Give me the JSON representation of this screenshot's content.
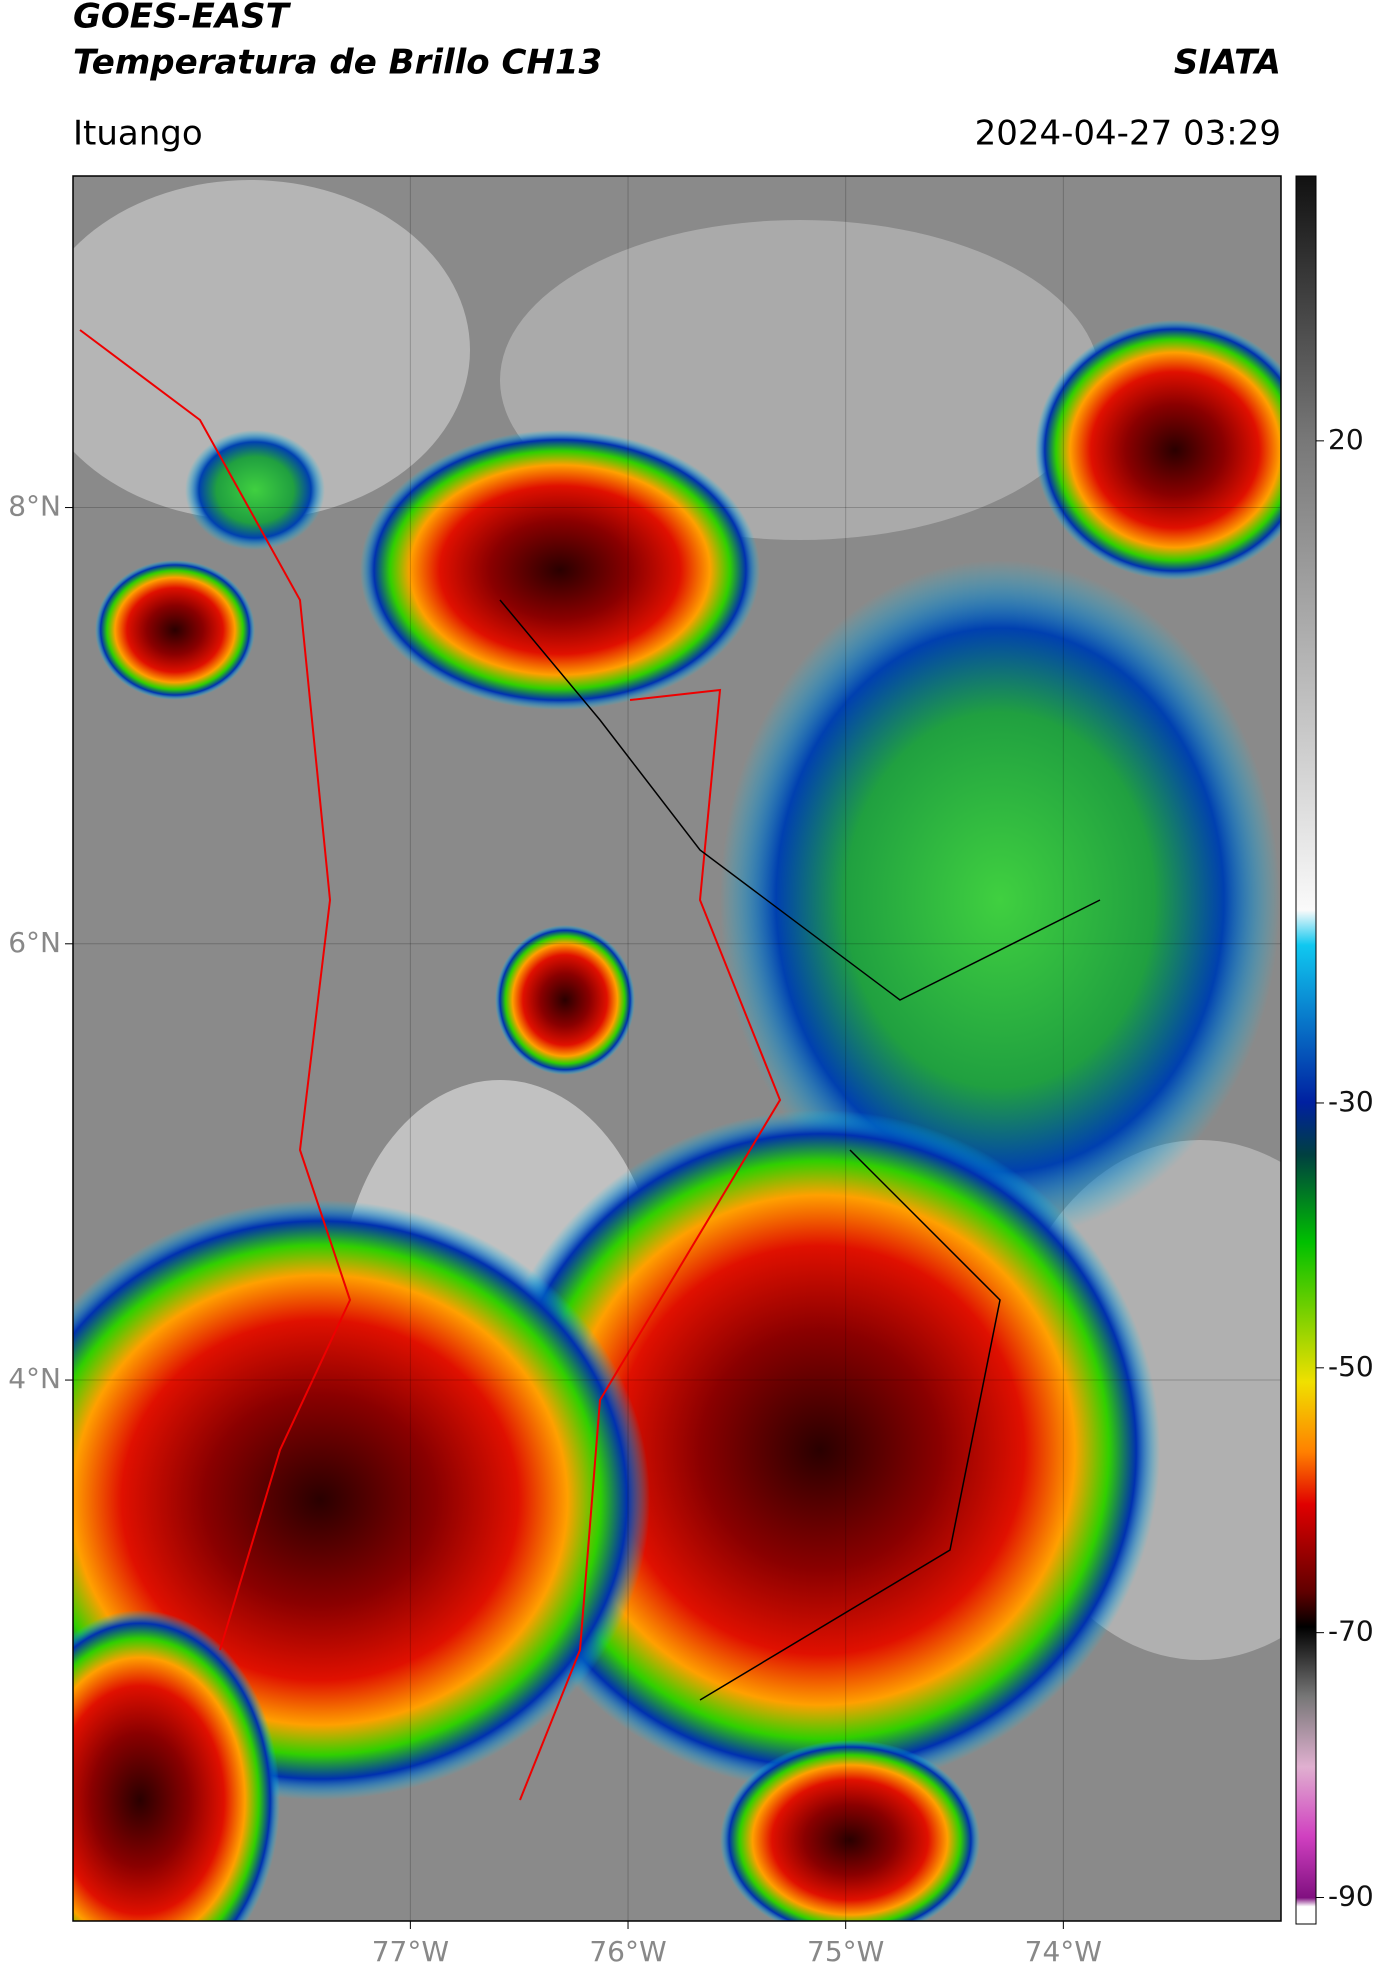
{
  "header": {
    "source": "GOES-EAST",
    "product": "Temperatura de Brillo CH13",
    "org": "SIATA",
    "location": "Ituango",
    "datetime": "2024-04-27 03:29"
  },
  "map": {
    "xlim": [
      -78.55,
      -73.0
    ],
    "ylim": [
      1.52,
      9.52
    ],
    "xticks": [
      {
        "value": -77,
        "label": "77°W"
      },
      {
        "value": -76,
        "label": "76°W"
      },
      {
        "value": -75,
        "label": "75°W"
      },
      {
        "value": -74,
        "label": "74°W"
      }
    ],
    "yticks": [
      {
        "value": 8,
        "label": "8°N"
      },
      {
        "value": 6,
        "label": "6°N"
      },
      {
        "value": 4,
        "label": "4°N"
      }
    ]
  },
  "colorbar": {
    "clim": [
      -92,
      40
    ],
    "ticks": [
      20,
      -30,
      -50,
      -70,
      -90
    ]
  }
}
